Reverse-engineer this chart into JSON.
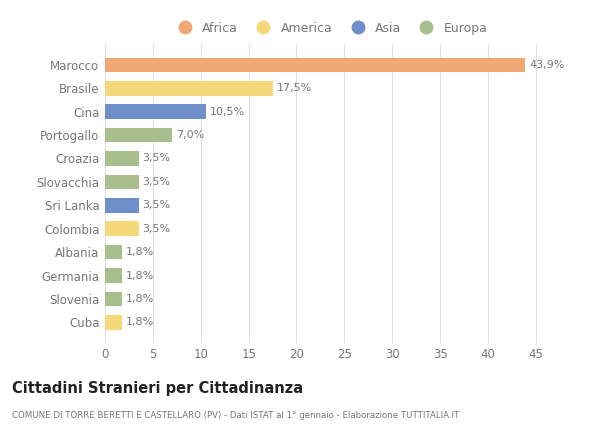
{
  "categories": [
    "Marocco",
    "Brasile",
    "Cina",
    "Portogallo",
    "Croazia",
    "Slovacchia",
    "Sri Lanka",
    "Colombia",
    "Albania",
    "Germania",
    "Slovenia",
    "Cuba"
  ],
  "values": [
    43.9,
    17.5,
    10.5,
    7.0,
    3.5,
    3.5,
    3.5,
    3.5,
    1.8,
    1.8,
    1.8,
    1.8
  ],
  "labels": [
    "43,9%",
    "17,5%",
    "10,5%",
    "7,0%",
    "3,5%",
    "3,5%",
    "3,5%",
    "3,5%",
    "1,8%",
    "1,8%",
    "1,8%",
    "1,8%"
  ],
  "continents": [
    "Africa",
    "America",
    "Asia",
    "Europa",
    "Europa",
    "Europa",
    "Asia",
    "America",
    "Europa",
    "Europa",
    "Europa",
    "America"
  ],
  "colors": {
    "Africa": "#F0A875",
    "America": "#F5D87A",
    "Asia": "#6E8FC9",
    "Europa": "#A8BE8C"
  },
  "legend_labels": [
    "Africa",
    "America",
    "Asia",
    "Europa"
  ],
  "title": "Cittadini Stranieri per Cittadinanza",
  "subtitle": "COMUNE DI TORRE BERETTI E CASTELLARO (PV) - Dati ISTAT al 1° gennaio - Elaborazione TUTTITALIA.IT",
  "xlim": [
    0,
    47
  ],
  "xticks": [
    0,
    5,
    10,
    15,
    20,
    25,
    30,
    35,
    40,
    45
  ],
  "background_color": "#ffffff",
  "plot_bg_color": "#f8f8f8",
  "grid_color": "#e0e0e0",
  "label_color": "#777777",
  "title_color": "#222222",
  "subtitle_color": "#777777"
}
